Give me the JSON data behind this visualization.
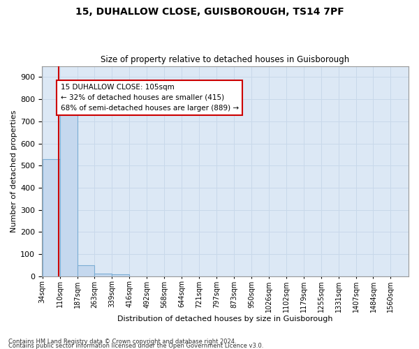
{
  "title_line1": "15, DUHALLOW CLOSE, GUISBOROUGH, TS14 7PF",
  "title_line2": "Size of property relative to detached houses in Guisborough",
  "xlabel": "Distribution of detached houses by size in Guisborough",
  "ylabel": "Number of detached properties",
  "categories": [
    "34sqm",
    "110sqm",
    "187sqm",
    "263sqm",
    "339sqm",
    "416sqm",
    "492sqm",
    "568sqm",
    "644sqm",
    "721sqm",
    "797sqm",
    "873sqm",
    "950sqm",
    "1026sqm",
    "1102sqm",
    "1179sqm",
    "1255sqm",
    "1331sqm",
    "1407sqm",
    "1484sqm",
    "1560sqm"
  ],
  "values": [
    530,
    730,
    50,
    12,
    10,
    0,
    0,
    0,
    0,
    0,
    0,
    0,
    0,
    0,
    0,
    0,
    0,
    0,
    0,
    0,
    0
  ],
  "bar_color": "#c5d8ee",
  "bar_edgecolor": "#7badd4",
  "property_size_label": "15 DUHALLOW CLOSE: 105sqm",
  "annotation_line1": "← 32% of detached houses are smaller (415)",
  "annotation_line2": "68% of semi-detached houses are larger (889) →",
  "vline_color": "#cc0000",
  "grid_color": "#c8d8ea",
  "background_color": "#dce8f5",
  "ylim": [
    0,
    950
  ],
  "yticks": [
    0,
    100,
    200,
    300,
    400,
    500,
    600,
    700,
    800,
    900
  ],
  "bin_width": 76,
  "footnote1": "Contains HM Land Registry data © Crown copyright and database right 2024.",
  "footnote2": "Contains public sector information licensed under the Open Government Licence v3.0."
}
